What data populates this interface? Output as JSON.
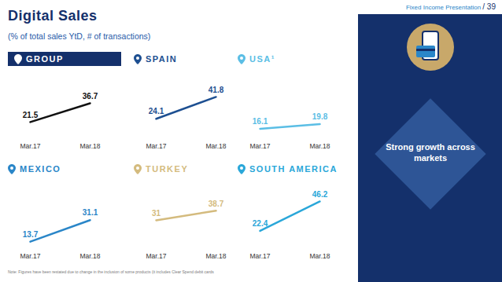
{
  "header": {
    "text": "Fixed Income Presentation",
    "page": "/ 39"
  },
  "title": "Digital Sales",
  "subtitle": "(% of total sales YtD, # of transactions)",
  "callout": "Strong growth across markets",
  "note": "Note: Figures have been restated due to change in the inclusion of some products (it includes Clear Spend debit cards",
  "chart_data": [
    {
      "type": "line",
      "title": "GROUP",
      "categories": [
        "Mar.17",
        "Mar.18"
      ],
      "values": [
        21.5,
        36.7
      ],
      "color": "#111111",
      "ylim": [
        10,
        50
      ],
      "data_labels": true,
      "tick_labels": "x"
    },
    {
      "type": "line",
      "title": "SPAIN",
      "categories": [
        "Mar.17",
        "Mar.18"
      ],
      "values": [
        24.1,
        41.8
      ],
      "color": "#1d4f91",
      "ylim": [
        10,
        50
      ],
      "data_labels": true,
      "tick_labels": "x"
    },
    {
      "type": "line",
      "title": "USA¹",
      "categories": [
        "Mar.17",
        "Mar.18"
      ],
      "values": [
        16.1,
        19.8
      ],
      "color": "#5bbee5",
      "ylim": [
        10,
        50
      ],
      "data_labels": true,
      "tick_labels": "x"
    },
    {
      "type": "line",
      "title": "MEXICO",
      "categories": [
        "Mar.17",
        "Mar.18"
      ],
      "values": [
        13.7,
        31.1
      ],
      "color": "#2a86c8",
      "ylim": [
        10,
        50
      ],
      "data_labels": true,
      "tick_labels": "x"
    },
    {
      "type": "line",
      "title": "TURKEY",
      "categories": [
        "Mar.17",
        "Mar.18"
      ],
      "values": [
        31.0,
        38.7
      ],
      "color": "#d4bb7e",
      "ylim": [
        10,
        50
      ],
      "data_labels": true,
      "tick_labels": "x"
    },
    {
      "type": "line",
      "title": "SOUTH AMERICA",
      "categories": [
        "Mar.17",
        "Mar.18"
      ],
      "values": [
        22.4,
        46.2
      ],
      "color": "#2aa7d9",
      "ylim": [
        10,
        50
      ],
      "data_labels": true,
      "tick_labels": "x"
    }
  ]
}
